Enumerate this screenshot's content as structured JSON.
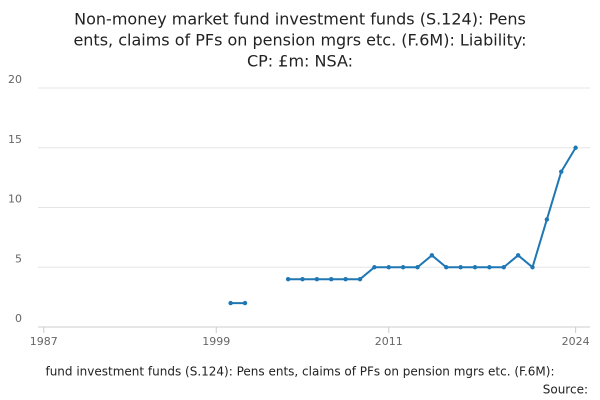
{
  "chart_data": {
    "type": "line",
    "title_lines": [
      "Non-money market fund investment funds (S.124): Pens",
      "ents, claims of PFs on pension mgrs etc. (F.6M): Liability:",
      "CP: £m: NSA:"
    ],
    "x": [
      2000,
      2001,
      2002,
      2003,
      2004,
      2005,
      2006,
      2007,
      2008,
      2009,
      2010,
      2011,
      2012,
      2013,
      2014,
      2015,
      2016,
      2017,
      2018,
      2019,
      2020,
      2021,
      2022,
      2023,
      2024
    ],
    "series": [
      {
        "color": "#1f77b4",
        "values": [
          2,
          2,
          null,
          null,
          4,
          4,
          4,
          4,
          4,
          4,
          5,
          5,
          5,
          5,
          6,
          5,
          5,
          5,
          5,
          5,
          6,
          5,
          9,
          13,
          15
        ]
      }
    ],
    "xlim": [
      1986.6,
      2025
    ],
    "xticks": [
      1987,
      1999,
      2011,
      2024
    ],
    "ylim": [
      0,
      20
    ],
    "yticks": [
      0,
      5,
      10,
      15,
      20
    ],
    "grid": true,
    "x_label": "fund investment funds (S.124): Pens ents, claims of PFs on pension mgrs etc. (F.6M):",
    "source": "Source:"
  }
}
